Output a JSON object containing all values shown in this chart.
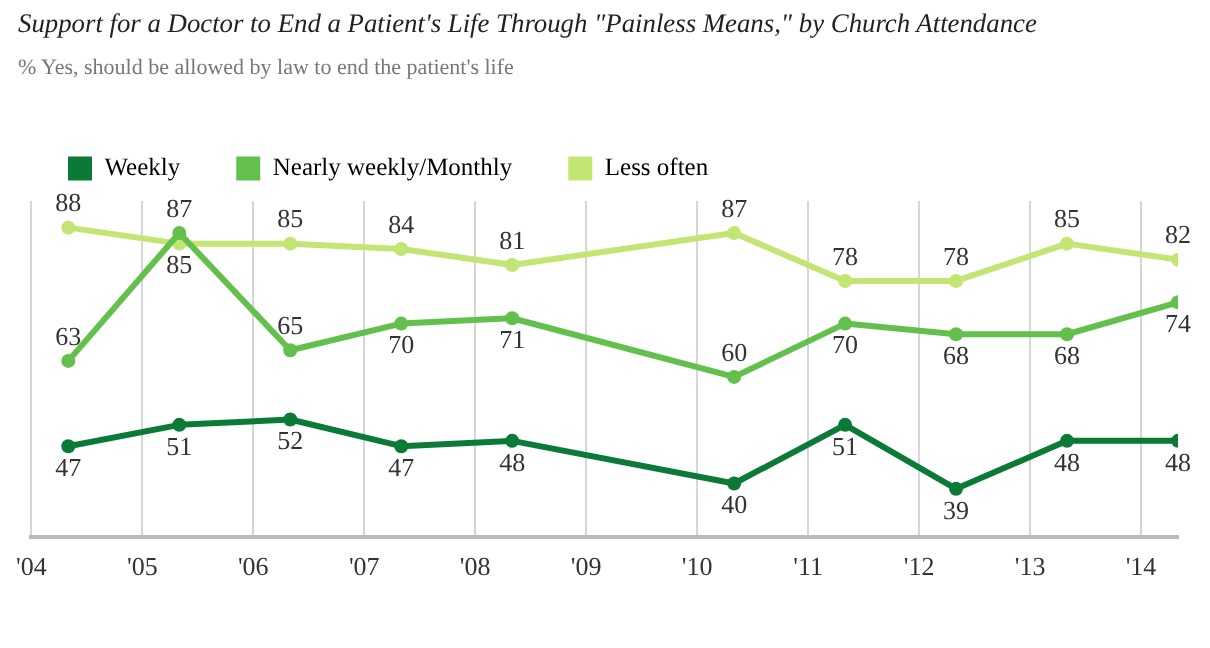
{
  "chart_data": {
    "type": "line",
    "title": "Support for a Doctor to End a Patient's Life Through \"Painless Means,\" by Church Attendance",
    "subtitle": "% Yes, should be allowed by law to end the patient's life",
    "x": [
      "2004-05",
      "2005-05",
      "2006-05",
      "2007-05",
      "2008-05",
      "2010-05",
      "2011-05",
      "2012-05",
      "2013-05",
      "2014-05"
    ],
    "series": [
      {
        "name": "Weekly",
        "color": "#0a7a36",
        "values": [
          47,
          51,
          52,
          47,
          48,
          40,
          51,
          39,
          48,
          48
        ]
      },
      {
        "name": "Nearly weekly/Monthly",
        "color": "#63c04d",
        "values": [
          63,
          87,
          65,
          70,
          71,
          60,
          70,
          68,
          68,
          74
        ]
      },
      {
        "name": "Less often",
        "color": "#c2e574",
        "values": [
          88,
          85,
          85,
          84,
          81,
          87,
          78,
          78,
          85,
          82
        ]
      }
    ],
    "xlim": [
      "2004-01",
      "2014-05"
    ],
    "xticks": [
      {
        "value": "2004",
        "label": "'04"
      },
      {
        "value": "2005",
        "label": "'05"
      },
      {
        "value": "2006",
        "label": "'06"
      },
      {
        "value": "2007",
        "label": "'07"
      },
      {
        "value": "2008",
        "label": "'08"
      },
      {
        "value": "2009",
        "label": "'09"
      },
      {
        "value": "2010",
        "label": "'10"
      },
      {
        "value": "2011",
        "label": "'11"
      },
      {
        "value": "2012",
        "label": "'12"
      },
      {
        "value": "2013",
        "label": "'13"
      },
      {
        "value": "2014",
        "label": "'14"
      }
    ],
    "ylim": [
      30,
      93
    ],
    "tick_labels": "x",
    "grid": "x",
    "legend": "top left",
    "marker": "circle",
    "line_style": "solid",
    "data_labels": true
  }
}
